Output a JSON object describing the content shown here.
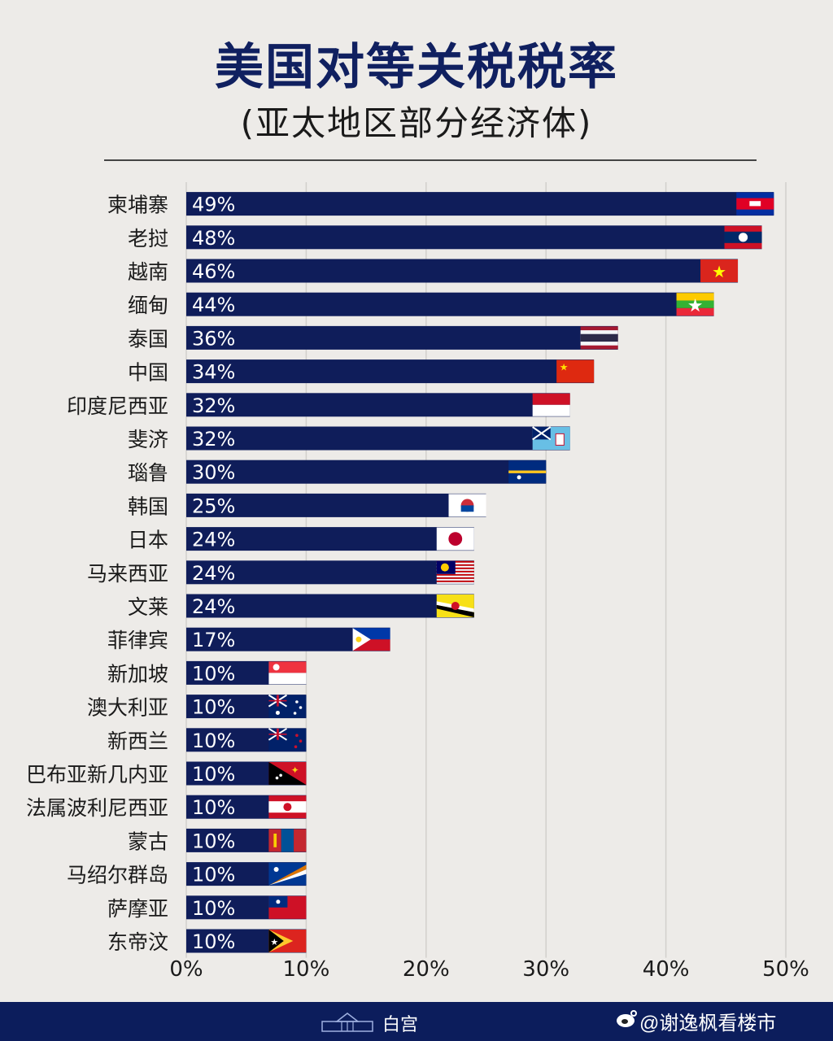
{
  "title": "美国对等关税税率",
  "subtitle": "(亚太地区部分经济体)",
  "footer": {
    "label": "白宫",
    "watermark": "@谢逸枫看楼市"
  },
  "colors": {
    "bar": "#0f1d5a",
    "background": "#edebe8",
    "footer": "#0c1d5c"
  },
  "chart_data": {
    "type": "bar",
    "orientation": "horizontal",
    "categories": [
      "柬埔寨",
      "老挝",
      "越南",
      "缅甸",
      "泰国",
      "中国",
      "印度尼西亚",
      "斐济",
      "瑙鲁",
      "韩国",
      "日本",
      "马来西亚",
      "文莱",
      "菲律宾",
      "新加坡",
      "澳大利亚",
      "新西兰",
      "巴布亚新几内亚",
      "法属波利尼西亚",
      "蒙古",
      "马绍尔群岛",
      "萨摩亚",
      "东帝汶"
    ],
    "values": [
      49,
      48,
      46,
      44,
      36,
      34,
      32,
      32,
      30,
      25,
      24,
      24,
      24,
      17,
      10,
      10,
      10,
      10,
      10,
      10,
      10,
      10,
      10
    ],
    "value_labels": [
      "49%",
      "48%",
      "46%",
      "44%",
      "36%",
      "34%",
      "32%",
      "32%",
      "30%",
      "25%",
      "24%",
      "24%",
      "24%",
      "17%",
      "10%",
      "10%",
      "10%",
      "10%",
      "10%",
      "10%",
      "10%",
      "10%",
      "10%"
    ],
    "flag_icons": [
      "cambodia-flag-icon",
      "laos-flag-icon",
      "vietnam-flag-icon",
      "myanmar-flag-icon",
      "thailand-flag-icon",
      "china-flag-icon",
      "indonesia-flag-icon",
      "fiji-flag-icon",
      "nauru-flag-icon",
      "south-korea-flag-icon",
      "japan-flag-icon",
      "malaysia-flag-icon",
      "brunei-flag-icon",
      "philippines-flag-icon",
      "singapore-flag-icon",
      "australia-flag-icon",
      "new-zealand-flag-icon",
      "papua-new-guinea-flag-icon",
      "french-polynesia-flag-icon",
      "mongolia-flag-icon",
      "marshall-islands-flag-icon",
      "samoa-flag-icon",
      "timor-leste-flag-icon"
    ],
    "x_ticks": [
      "0%",
      "10%",
      "20%",
      "30%",
      "40%",
      "50%"
    ],
    "x_tick_values": [
      0,
      10,
      20,
      30,
      40,
      50
    ],
    "xlim": [
      0,
      50
    ],
    "grid": true
  }
}
